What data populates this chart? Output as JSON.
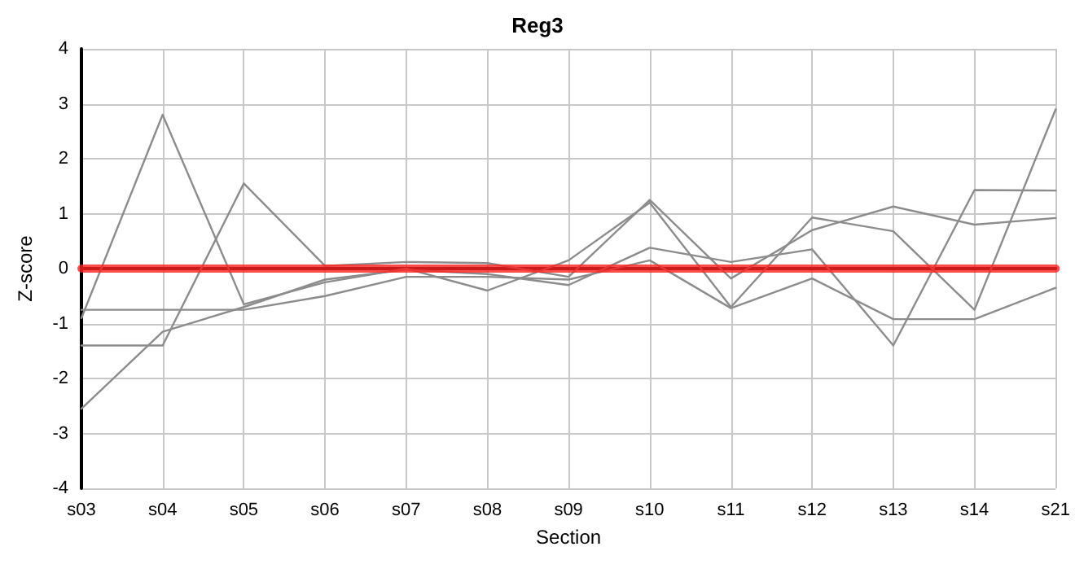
{
  "chart_data": {
    "type": "line",
    "title": "Reg3",
    "xlabel": "Section",
    "ylabel": "Z-score",
    "categories": [
      "s03",
      "s04",
      "s05",
      "s06",
      "s07",
      "s08",
      "s09",
      "s10",
      "s11",
      "s12",
      "s13",
      "s14",
      "s21"
    ],
    "series": [
      {
        "color": "#8c8c8c",
        "values": [
          -0.9,
          2.8,
          -0.65,
          -0.25,
          0,
          -0.4,
          0.15,
          1.2,
          -0.7,
          0.93,
          0.68,
          -0.75,
          2.9
        ]
      },
      {
        "color": "#8c8c8c",
        "values": [
          -0.75,
          -0.75,
          -0.75,
          -0.5,
          -0.15,
          -0.15,
          -0.2,
          0.15,
          -0.72,
          -0.18,
          -0.92,
          -0.92,
          -0.35
        ]
      },
      {
        "color": "#8c8c8c",
        "values": [
          -1.4,
          -1.4,
          1.55,
          0.05,
          0.12,
          0.1,
          -0.15,
          1.25,
          -0.18,
          0.7,
          1.13,
          0.8,
          0.92
        ]
      },
      {
        "color": "#8c8c8c",
        "values": [
          -2.55,
          -1.15,
          -0.7,
          -0.2,
          -0.02,
          -0.1,
          -0.3,
          0.38,
          0.12,
          0.35,
          -1.4,
          1.43,
          1.42
        ]
      },
      {
        "color": "#ff2020",
        "values": [
          0,
          0,
          0,
          0,
          0,
          0,
          0,
          0,
          0,
          0,
          0,
          0,
          0
        ]
      }
    ],
    "ylim": [
      -4,
      4
    ],
    "yticks": [
      -4,
      -3,
      -2,
      -1,
      0,
      1,
      2,
      3,
      4
    ],
    "grid": true,
    "marker": "none",
    "line_style": "solid"
  }
}
